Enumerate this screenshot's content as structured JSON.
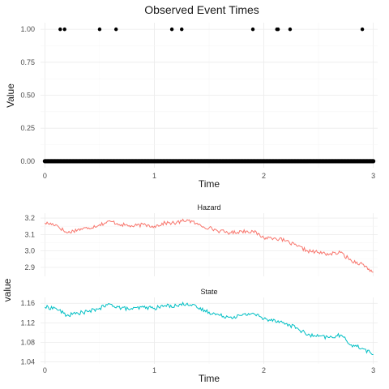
{
  "chart_data": [
    {
      "type": "scatter",
      "title": "Observed Event Times",
      "xlabel": "Time",
      "ylabel": "Value",
      "xlim": [
        -0.04,
        3.04
      ],
      "ylim": [
        -0.05,
        1.05
      ],
      "xticks": [
        "0",
        "1",
        "2",
        "3"
      ],
      "yticks": [
        "0.00",
        "0.25",
        "0.50",
        "0.75",
        "1.00"
      ],
      "grid": true,
      "event_times": [
        0.14,
        0.18,
        0.5,
        0.65,
        1.16,
        1.25,
        1.9,
        2.12,
        2.13,
        2.24,
        2.9
      ],
      "event_value": 1,
      "baseline_value": 0,
      "baseline_x_range": [
        0,
        3
      ],
      "point_color": "#000000"
    },
    {
      "type": "line",
      "xlabel": "Time",
      "ylabel": "value",
      "facets": [
        {
          "name": "Hazard",
          "color": "#F8766D",
          "ylim": [
            2.845,
            3.23
          ],
          "yticks": [
            "2.9",
            "3.0",
            "3.1",
            "3.2"
          ],
          "x": [
            0,
            0.1,
            0.2,
            0.3,
            0.4,
            0.5,
            0.6,
            0.7,
            0.8,
            0.9,
            1.0,
            1.1,
            1.2,
            1.3,
            1.4,
            1.5,
            1.6,
            1.7,
            1.8,
            1.9,
            2.0,
            2.1,
            2.2,
            2.3,
            2.4,
            2.5,
            2.6,
            2.7,
            2.8,
            2.9,
            3.0
          ],
          "values": [
            3.17,
            3.16,
            3.11,
            3.13,
            3.14,
            3.16,
            3.18,
            3.16,
            3.15,
            3.16,
            3.15,
            3.17,
            3.17,
            3.19,
            3.16,
            3.14,
            3.12,
            3.11,
            3.12,
            3.12,
            3.08,
            3.08,
            3.06,
            3.03,
            3.0,
            2.99,
            2.98,
            2.99,
            2.94,
            2.92,
            2.87
          ]
        },
        {
          "name": "State",
          "color": "#00BFC4",
          "ylim": [
            1.036,
            1.172
          ],
          "yticks": [
            "1.04",
            "1.08",
            "1.12",
            "1.16"
          ],
          "x": [
            0,
            0.1,
            0.2,
            0.3,
            0.4,
            0.5,
            0.6,
            0.7,
            0.8,
            0.9,
            1.0,
            1.1,
            1.2,
            1.3,
            1.4,
            1.5,
            1.6,
            1.7,
            1.8,
            1.9,
            2.0,
            2.1,
            2.2,
            2.3,
            2.4,
            2.5,
            2.6,
            2.7,
            2.8,
            2.9,
            3.0
          ],
          "values": [
            1.152,
            1.15,
            1.135,
            1.14,
            1.143,
            1.15,
            1.158,
            1.15,
            1.148,
            1.152,
            1.15,
            1.155,
            1.155,
            1.16,
            1.15,
            1.142,
            1.135,
            1.132,
            1.135,
            1.14,
            1.128,
            1.126,
            1.118,
            1.11,
            1.095,
            1.092,
            1.09,
            1.095,
            1.075,
            1.068,
            1.055
          ]
        }
      ]
    }
  ]
}
